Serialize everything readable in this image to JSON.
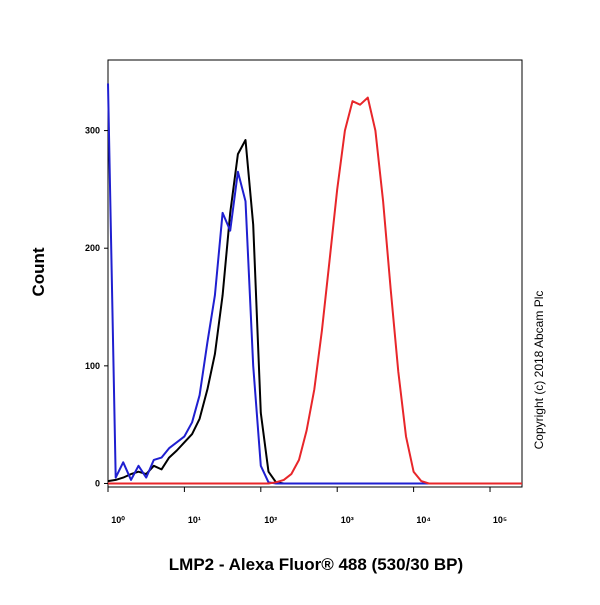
{
  "chart_data": {
    "type": "line",
    "x_label": "LMP2 - Alexa Fluor® 488 (530/30 BP)",
    "y_label": "Count",
    "annotation": "Copyright (c) 2018 Abcam Plc",
    "log_x": true,
    "xlim": [
      1,
      262144
    ],
    "ylim": [
      -3,
      360
    ],
    "xticks": [
      {
        "value": 1,
        "label": "10⁰"
      },
      {
        "value": 10,
        "label": "10¹"
      },
      {
        "value": 100,
        "label": "10²"
      },
      {
        "value": 1000,
        "label": "10³"
      },
      {
        "value": 10000,
        "label": "10⁴"
      },
      {
        "value": 100000,
        "label": "10⁵"
      }
    ],
    "yticks": [
      0,
      100,
      200,
      300
    ],
    "x": [
      1,
      1.26,
      1.58,
      2,
      2.51,
      3.16,
      3.98,
      5.01,
      6.31,
      7.94,
      10,
      12.6,
      15.8,
      20,
      25.1,
      31.6,
      39.8,
      50.1,
      63.1,
      79.4,
      100,
      126,
      158,
      200,
      251,
      316,
      398,
      501,
      631,
      794,
      1000,
      1259,
      1585,
      1995,
      2512,
      3162,
      3981,
      5012,
      6310,
      7943,
      10000,
      12589,
      15849,
      100000,
      262144
    ],
    "series": [
      {
        "color": "#000000",
        "values": [
          2,
          3,
          5,
          8,
          10,
          8,
          15,
          12,
          22,
          28,
          35,
          42,
          55,
          80,
          110,
          160,
          230,
          280,
          292,
          220,
          60,
          10,
          1,
          0,
          0,
          0,
          0,
          0,
          0,
          0,
          0,
          0,
          0,
          0,
          0,
          0,
          0,
          0,
          0,
          0,
          0,
          0,
          0,
          0,
          0
        ]
      },
      {
        "color": "#1f1fd0",
        "values": [
          340,
          5,
          18,
          3,
          15,
          5,
          20,
          22,
          30,
          35,
          40,
          52,
          75,
          120,
          160,
          230,
          215,
          265,
          240,
          100,
          15,
          1,
          0,
          0,
          0,
          0,
          0,
          0,
          0,
          0,
          0,
          0,
          0,
          0,
          0,
          0,
          0,
          0,
          0,
          0,
          0,
          0,
          0,
          0,
          0
        ]
      },
      {
        "color": "#e8262a",
        "values": [
          0,
          0,
          0,
          0,
          0,
          0,
          0,
          0,
          0,
          0,
          0,
          0,
          0,
          0,
          0,
          0,
          0,
          0,
          0,
          0,
          0,
          0,
          1,
          3,
          8,
          20,
          45,
          80,
          130,
          190,
          250,
          300,
          325,
          322,
          328,
          300,
          240,
          165,
          95,
          40,
          10,
          2,
          0,
          0,
          0
        ]
      }
    ]
  }
}
